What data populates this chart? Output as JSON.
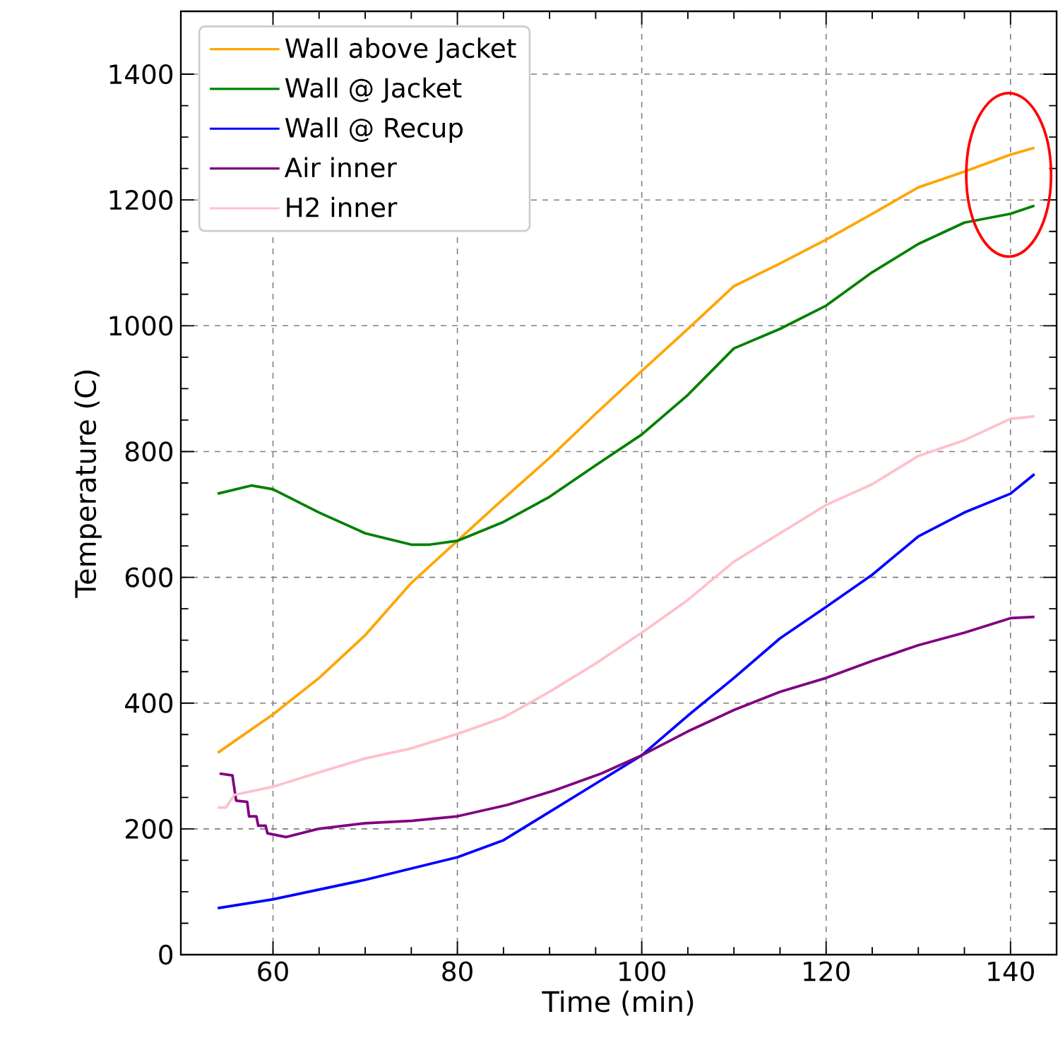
{
  "chart_data": {
    "type": "line",
    "xlabel": "Time (min)",
    "ylabel": "Temperature (C)",
    "xlim": [
      50,
      145
    ],
    "ylim": [
      0,
      1500
    ],
    "xticks": [
      60,
      80,
      100,
      120,
      140
    ],
    "yticks": [
      0,
      200,
      400,
      600,
      800,
      1000,
      1200,
      1400
    ],
    "grid": true,
    "legend": "top left",
    "series": [
      {
        "name": "Wall above Jacket",
        "color": "#ffa500",
        "x": [
          54,
          60,
          65,
          70,
          75,
          80,
          85,
          90,
          95,
          100,
          105,
          110,
          115,
          120,
          125,
          130,
          135,
          140,
          142.6
        ],
        "values": [
          321,
          382,
          440,
          508,
          591,
          658,
          725,
          790,
          860,
          928,
          995,
          1063,
          1099,
          1137,
          1178,
          1220,
          1245,
          1272,
          1283
        ]
      },
      {
        "name": "Wall @ Jacket",
        "color": "#008000",
        "x": [
          54,
          57.7,
          60,
          65,
          70,
          75,
          77,
          80,
          85,
          90,
          95,
          100,
          105,
          110,
          115,
          120,
          125,
          130,
          135,
          140,
          142.6
        ],
        "values": [
          733,
          746,
          740,
          703,
          670,
          652,
          652,
          658,
          688,
          728,
          778,
          827,
          890,
          964,
          995,
          1032,
          1085,
          1130,
          1164,
          1178,
          1191
        ]
      },
      {
        "name": "Wall @ Recup",
        "color": "#0000ff",
        "x": [
          54,
          60,
          70,
          80,
          85,
          90,
          95,
          100,
          105,
          110,
          115,
          120,
          125,
          130,
          135,
          140,
          142.6
        ],
        "values": [
          74,
          88,
          119,
          155,
          182,
          227,
          272,
          317,
          380,
          440,
          503,
          553,
          604,
          665,
          703,
          733,
          764
        ]
      },
      {
        "name": "Air inner",
        "color": "#800080",
        "x": [
          54.2,
          55.6,
          56.0,
          57.2,
          57.4,
          58.2,
          58.4,
          59.2,
          59.4,
          61.4,
          64.9,
          70,
          75.1,
          80,
          85.4,
          90.5,
          95.6,
          100,
          105,
          110,
          115,
          120,
          125,
          130,
          135,
          140,
          142.6
        ],
        "values": [
          288,
          285,
          245,
          243,
          220,
          220,
          205,
          205,
          193,
          187,
          200,
          209,
          213,
          220,
          238,
          261,
          288,
          317,
          355,
          389,
          418,
          440,
          467,
          492,
          512,
          535,
          537
        ]
      },
      {
        "name": "H2 inner",
        "color": "#ffc0cb",
        "x": [
          54,
          54.9,
          55.8,
          60,
          65,
          70,
          75,
          80,
          85,
          90,
          95,
          100,
          105,
          110,
          115,
          120,
          125,
          130,
          135,
          140,
          142.6
        ],
        "values": [
          234,
          234,
          254,
          267,
          290,
          312,
          328,
          351,
          377,
          418,
          463,
          512,
          564,
          625,
          670,
          715,
          748,
          793,
          818,
          852,
          856
        ]
      }
    ]
  }
}
